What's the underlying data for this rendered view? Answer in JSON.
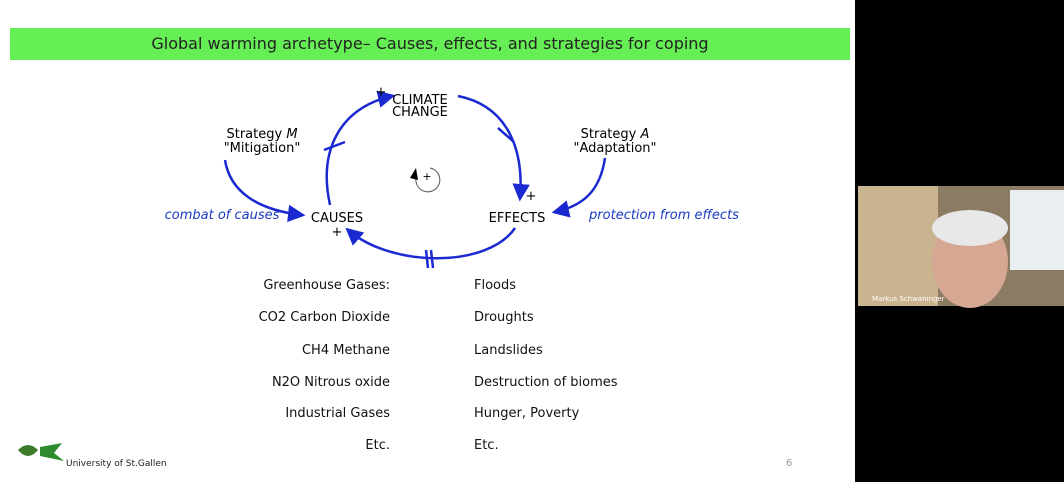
{
  "slide": {
    "title": "Global warming archetype– Causes, effects, and strategies for coping",
    "diagram": {
      "climate": {
        "line1": "CLIMATE",
        "line2": "CHANGE",
        "sign": "+"
      },
      "causes": {
        "label": "CAUSES",
        "sign": "+"
      },
      "effects": {
        "label": "EFFECTS",
        "sign": "+"
      },
      "loop_sign": "+",
      "strategy_m": {
        "prefix": "Strategy",
        "letter": "M",
        "name": "\"Mitigation\""
      },
      "strategy_a": {
        "prefix": "Strategy",
        "letter": "A",
        "name": "\"Adaptation\""
      },
      "combat": "combat of causes",
      "protection": "protection from effects"
    },
    "causes_list": [
      "Greenhouse Gases:",
      "CO2 Carbon Dioxide",
      "CH4 Methane",
      "N2O Nitrous oxide",
      "Industrial Gases",
      "Etc."
    ],
    "effects_list": [
      "Floods",
      "Droughts",
      "Landslides",
      "Destruction of biomes",
      "Hunger, Poverty",
      "Etc."
    ],
    "footer": "University of St.Gallen",
    "page": "6"
  },
  "participant": {
    "name": "Markus Schwaninger"
  }
}
